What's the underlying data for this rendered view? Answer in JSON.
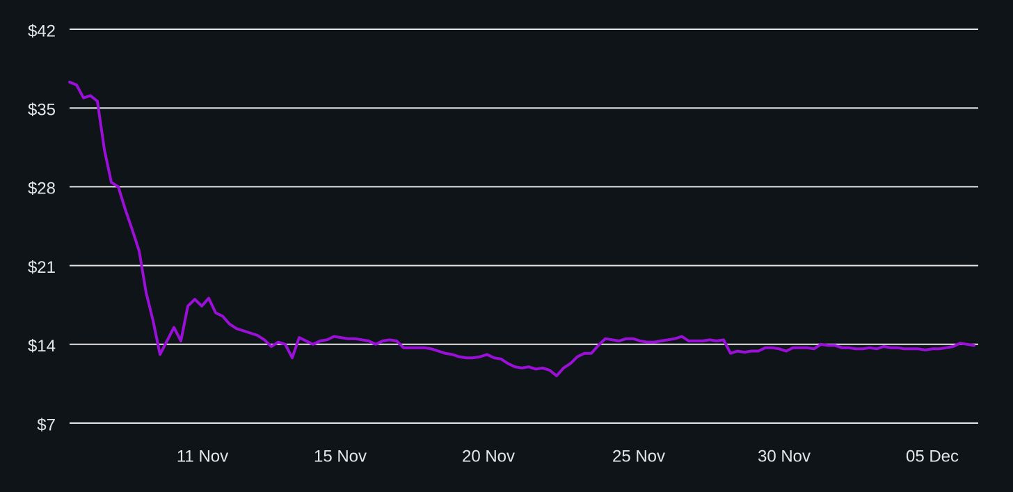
{
  "chart_data": {
    "type": "line",
    "series": [
      {
        "color": "#9b10d8",
        "values": [
          37.3,
          37.05,
          35.9,
          36.1,
          35.6,
          31.3,
          28.4,
          28.0,
          26.0,
          24.2,
          22.3,
          18.6,
          16.1,
          13.1,
          14.3,
          15.5,
          14.3,
          17.4,
          18.0,
          17.4,
          18.1,
          16.8,
          16.5,
          15.8,
          15.4,
          15.2,
          15.0,
          14.8,
          14.4,
          13.8,
          14.2,
          14.0,
          12.8,
          14.6,
          14.3,
          14.0,
          14.3,
          14.4,
          14.7,
          14.6,
          14.5,
          14.5,
          14.4,
          14.3,
          14.0,
          14.3,
          14.4,
          14.3,
          13.7,
          13.7,
          13.7,
          13.7,
          13.6,
          13.4,
          13.2,
          13.1,
          12.9,
          12.8,
          12.8,
          12.9,
          13.1,
          12.8,
          12.7,
          12.3,
          12.0,
          11.9,
          12.0,
          11.8,
          11.9,
          11.7,
          11.2,
          11.9,
          12.3,
          12.9,
          13.2,
          13.2,
          13.9,
          14.5,
          14.4,
          14.3,
          14.5,
          14.5,
          14.3,
          14.2,
          14.2,
          14.3,
          14.4,
          14.5,
          14.7,
          14.3,
          14.3,
          14.3,
          14.4,
          14.3,
          14.4,
          13.2,
          13.4,
          13.3,
          13.4,
          13.4,
          13.7,
          13.7,
          13.6,
          13.4,
          13.7,
          13.7,
          13.7,
          13.6,
          14.0,
          13.9,
          13.9,
          13.7,
          13.7,
          13.6,
          13.6,
          13.7,
          13.6,
          13.8,
          13.7,
          13.7,
          13.6,
          13.6,
          13.6,
          13.5,
          13.6,
          13.6,
          13.7,
          13.8,
          14.1,
          14.0,
          13.9
        ]
      }
    ],
    "xlim": [
      0,
      130
    ],
    "xticks": [
      {
        "value": 19.1,
        "label": "11 Nov"
      },
      {
        "value": 38.9,
        "label": "15 Nov"
      },
      {
        "value": 60.2,
        "label": "20 Nov"
      },
      {
        "value": 81.8,
        "label": "25 Nov"
      },
      {
        "value": 102.7,
        "label": "30 Nov"
      },
      {
        "value": 124,
        "label": "05 Dec"
      }
    ],
    "ylim": [
      7,
      42
    ],
    "yticks": [
      {
        "value": 7,
        "label": "$7"
      },
      {
        "value": 14,
        "label": "$14"
      },
      {
        "value": 21,
        "label": "$21"
      },
      {
        "value": 28,
        "label": "$28"
      },
      {
        "value": 35,
        "label": "$35"
      },
      {
        "value": 42,
        "label": "$42"
      }
    ],
    "grid": true
  }
}
